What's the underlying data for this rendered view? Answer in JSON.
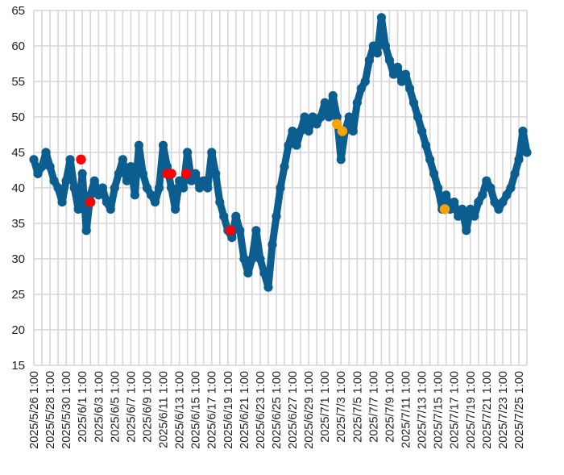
{
  "chart_data": {
    "type": "scatter",
    "title": "",
    "xlabel": "",
    "ylabel": "",
    "ylim": [
      15,
      65
    ],
    "y_ticks": [
      15,
      20,
      25,
      30,
      35,
      40,
      45,
      50,
      55,
      60,
      65
    ],
    "x_tick_labels": [
      "2025/5/26 1:00",
      "2025/5/28 1:00",
      "2025/5/30 1:00",
      "2025/6/1 1:00",
      "2025/6/3 1:00",
      "2025/6/5 1:00",
      "2025/6/7 1:00",
      "2025/6/9 1:00",
      "2025/6/11 1:00",
      "2025/6/13 1:00",
      "2025/6/15 1:00",
      "2025/6/17 1:00",
      "2025/6/19 1:00",
      "2025/6/21 1:00",
      "2025/6/23 1:00",
      "2025/6/25 1:00",
      "2025/6/27 1:00",
      "2025/6/29 1:00",
      "2025/7/1 1:00",
      "2025/7/3 1:00",
      "2025/7/5 1:00",
      "2025/7/7 1:00",
      "2025/7/9 1:00",
      "2025/7/11 1:00",
      "2025/7/13 1:00",
      "2025/7/15 1:00",
      "2025/7/17 1:00",
      "2025/7/19 1:00",
      "2025/7/21 1:00",
      "2025/7/23 1:00",
      "2025/7/25 1:00"
    ],
    "grid": true,
    "legend": "none",
    "series": [
      {
        "color": "#0b5e8f",
        "marker": "circle",
        "connected": true,
        "points": [
          [
            "2025/5/26 1:00",
            44
          ],
          [
            "2025/5/26 13:00",
            42
          ],
          [
            "2025/5/27 1:00",
            43
          ],
          [
            "2025/5/27 13:00",
            45
          ],
          [
            "2025/5/28 1:00",
            43
          ],
          [
            "2025/5/28 13:00",
            41
          ],
          [
            "2025/5/29 1:00",
            40
          ],
          [
            "2025/5/29 13:00",
            38
          ],
          [
            "2025/5/30 1:00",
            41
          ],
          [
            "2025/5/30 13:00",
            44
          ],
          [
            "2025/5/31 1:00",
            40
          ],
          [
            "2025/5/31 13:00",
            37
          ],
          [
            "2025/6/1 1:00",
            42
          ],
          [
            "2025/6/1 13:00",
            34
          ],
          [
            "2025/6/2 1:00",
            39
          ],
          [
            "2025/6/2 13:00",
            41
          ],
          [
            "2025/6/3 1:00",
            39
          ],
          [
            "2025/6/3 13:00",
            40
          ],
          [
            "2025/6/4 1:00",
            38
          ],
          [
            "2025/6/4 13:00",
            37
          ],
          [
            "2025/6/5 1:00",
            40
          ],
          [
            "2025/6/5 13:00",
            42
          ],
          [
            "2025/6/6 1:00",
            44
          ],
          [
            "2025/6/6 13:00",
            41
          ],
          [
            "2025/6/7 1:00",
            43
          ],
          [
            "2025/6/7 13:00",
            39
          ],
          [
            "2025/6/8 1:00",
            46
          ],
          [
            "2025/6/8 13:00",
            42
          ],
          [
            "2025/6/9 1:00",
            40
          ],
          [
            "2025/6/9 13:00",
            39
          ],
          [
            "2025/6/10 1:00",
            38
          ],
          [
            "2025/6/10 13:00",
            40
          ],
          [
            "2025/6/11 1:00",
            46
          ],
          [
            "2025/6/11 13:00",
            43
          ],
          [
            "2025/6/12 1:00",
            40
          ],
          [
            "2025/6/12 13:00",
            37
          ],
          [
            "2025/6/13 1:00",
            41
          ],
          [
            "2025/6/13 13:00",
            40
          ],
          [
            "2025/6/14 1:00",
            45
          ],
          [
            "2025/6/14 13:00",
            41
          ],
          [
            "2025/6/15 1:00",
            42
          ],
          [
            "2025/6/15 13:00",
            40
          ],
          [
            "2025/6/16 1:00",
            41
          ],
          [
            "2025/6/16 13:00",
            40
          ],
          [
            "2025/6/17 1:00",
            45
          ],
          [
            "2025/6/17 13:00",
            42
          ],
          [
            "2025/6/18 1:00",
            38
          ],
          [
            "2025/6/18 13:00",
            36
          ],
          [
            "2025/6/19 1:00",
            34
          ],
          [
            "2025/6/19 13:00",
            33
          ],
          [
            "2025/6/20 1:00",
            36
          ],
          [
            "2025/6/20 13:00",
            34
          ],
          [
            "2025/6/21 1:00",
            30
          ],
          [
            "2025/6/21 13:00",
            28
          ],
          [
            "2025/6/22 1:00",
            30
          ],
          [
            "2025/6/22 13:00",
            34
          ],
          [
            "2025/6/23 1:00",
            30
          ],
          [
            "2025/6/23 13:00",
            28
          ],
          [
            "2025/6/24 1:00",
            26
          ],
          [
            "2025/6/24 13:00",
            32
          ],
          [
            "2025/6/25 1:00",
            36
          ],
          [
            "2025/6/25 13:00",
            40
          ],
          [
            "2025/6/26 1:00",
            43
          ],
          [
            "2025/6/26 13:00",
            46
          ],
          [
            "2025/6/27 1:00",
            48
          ],
          [
            "2025/6/27 13:00",
            46
          ],
          [
            "2025/6/28 1:00",
            48
          ],
          [
            "2025/6/28 13:00",
            50
          ],
          [
            "2025/6/29 1:00",
            48
          ],
          [
            "2025/6/29 13:00",
            50
          ],
          [
            "2025/6/30 1:00",
            49
          ],
          [
            "2025/6/30 13:00",
            50
          ],
          [
            "2025/7/1 1:00",
            52
          ],
          [
            "2025/7/1 13:00",
            50
          ],
          [
            "2025/7/2 1:00",
            53
          ],
          [
            "2025/7/2 13:00",
            50
          ],
          [
            "2025/7/3 1:00",
            44
          ],
          [
            "2025/7/3 13:00",
            48
          ],
          [
            "2025/7/4 1:00",
            50
          ],
          [
            "2025/7/4 13:00",
            48
          ],
          [
            "2025/7/5 1:00",
            52
          ],
          [
            "2025/7/5 13:00",
            54
          ],
          [
            "2025/7/6 1:00",
            55
          ],
          [
            "2025/7/6 13:00",
            58
          ],
          [
            "2025/7/7 1:00",
            60
          ],
          [
            "2025/7/7 13:00",
            59
          ],
          [
            "2025/7/8 1:00",
            64
          ],
          [
            "2025/7/8 13:00",
            60
          ],
          [
            "2025/7/9 1:00",
            58
          ],
          [
            "2025/7/9 13:00",
            56
          ],
          [
            "2025/7/10 1:00",
            57
          ],
          [
            "2025/7/10 13:00",
            55
          ],
          [
            "2025/7/11 1:00",
            56
          ],
          [
            "2025/7/11 13:00",
            54
          ],
          [
            "2025/7/12 1:00",
            52
          ],
          [
            "2025/7/12 13:00",
            50
          ],
          [
            "2025/7/13 1:00",
            48
          ],
          [
            "2025/7/13 13:00",
            46
          ],
          [
            "2025/7/14 1:00",
            44
          ],
          [
            "2025/7/14 13:00",
            42
          ],
          [
            "2025/7/15 1:00",
            40
          ],
          [
            "2025/7/15 13:00",
            37
          ],
          [
            "2025/7/16 1:00",
            39
          ],
          [
            "2025/7/16 13:00",
            37
          ],
          [
            "2025/7/17 1:00",
            38
          ],
          [
            "2025/7/17 13:00",
            36
          ],
          [
            "2025/7/18 1:00",
            37
          ],
          [
            "2025/7/18 13:00",
            34
          ],
          [
            "2025/7/19 1:00",
            37
          ],
          [
            "2025/7/19 13:00",
            36
          ],
          [
            "2025/7/20 1:00",
            38
          ],
          [
            "2025/7/20 13:00",
            39
          ],
          [
            "2025/7/21 1:00",
            41
          ],
          [
            "2025/7/21 13:00",
            40
          ],
          [
            "2025/7/22 1:00",
            38
          ],
          [
            "2025/7/22 13:00",
            37
          ],
          [
            "2025/7/23 1:00",
            38
          ],
          [
            "2025/7/23 13:00",
            39
          ],
          [
            "2025/7/24 1:00",
            40
          ],
          [
            "2025/7/24 13:00",
            42
          ],
          [
            "2025/7/25 1:00",
            44
          ],
          [
            "2025/7/25 13:00",
            48
          ],
          [
            "2025/7/26 1:00",
            45
          ]
        ]
      },
      {
        "color": "#ff0000",
        "marker": "circle",
        "connected": false,
        "points": [
          [
            "2025/5/31 21:00",
            44
          ],
          [
            "2025/6/2 1:00",
            38
          ],
          [
            "2025/6/11 13:00",
            42
          ],
          [
            "2025/6/12 1:00",
            42
          ],
          [
            "2025/6/13 21:00",
            42
          ],
          [
            "2025/6/19 9:00",
            34
          ]
        ]
      },
      {
        "color": "#f5a400",
        "marker": "circle",
        "connected": false,
        "points": [
          [
            "2025/7/2 13:00",
            49
          ],
          [
            "2025/7/3 5:00",
            48
          ],
          [
            "2025/7/15 21:00",
            37
          ]
        ]
      }
    ]
  }
}
